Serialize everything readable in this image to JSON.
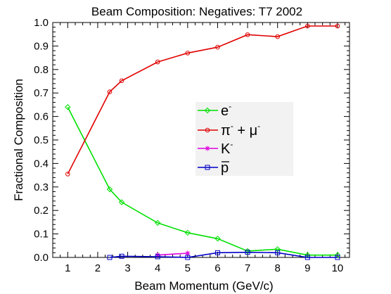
{
  "chart_data": {
    "type": "line",
    "title": "Beam Composition: Negatives: T7 2002",
    "xlabel": "Beam Momentum (GeV/c)",
    "ylabel": "Fractional Composition",
    "xlim": [
      0.5,
      10.4
    ],
    "ylim": [
      0,
      1.0
    ],
    "x_ticks": [
      1,
      2,
      3,
      4,
      5,
      6,
      7,
      8,
      9,
      10
    ],
    "y_ticks": [
      "0.0",
      "0.1",
      "0.2",
      "0.3",
      "0.4",
      "0.5",
      "0.6",
      "0.7",
      "0.8",
      "0.9",
      "1.0"
    ],
    "grid": false,
    "legend_position": "right-center",
    "series": [
      {
        "key": "electron",
        "legend_base": "e",
        "legend_sup": "-",
        "color": "#00e000",
        "marker": "diamond",
        "x": [
          1,
          2.4,
          2.8,
          4,
          5,
          6,
          7,
          8,
          9,
          10
        ],
        "y": [
          0.64,
          0.29,
          0.235,
          0.147,
          0.105,
          0.08,
          0.027,
          0.035,
          0.01,
          0.01
        ]
      },
      {
        "key": "pion-muon",
        "legend_base": "π",
        "legend_sup": "-",
        "legend_mid": " + μ",
        "legend_sup2": "-",
        "color": "#e00000",
        "marker": "circle",
        "x": [
          1,
          2.4,
          2.8,
          4,
          5,
          6,
          7,
          8,
          9,
          10
        ],
        "y": [
          0.355,
          0.705,
          0.752,
          0.832,
          0.87,
          0.895,
          0.948,
          0.94,
          0.985,
          0.985
        ]
      },
      {
        "key": "kaon",
        "legend_base": "K",
        "legend_sup": "-",
        "color": "#e000e0",
        "marker": "asterisk",
        "x": [
          4,
          5
        ],
        "y": [
          0.01,
          0.018
        ]
      },
      {
        "key": "antiproton",
        "legend_base": "p",
        "legend_overbar": true,
        "color": "#0000c8",
        "marker": "square",
        "x": [
          2.4,
          2.8,
          4,
          5,
          6,
          7,
          8,
          9,
          10
        ],
        "y": [
          0.0,
          0.005,
          0.003,
          0.0,
          0.02,
          0.022,
          0.02,
          0.0,
          0.0
        ]
      }
    ]
  }
}
